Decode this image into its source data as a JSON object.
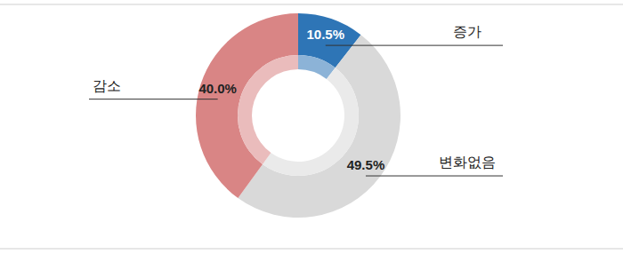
{
  "chart_data": {
    "type": "donut",
    "categories": [
      "증가",
      "변화없음",
      "감소"
    ],
    "values": [
      10.5,
      49.5,
      40.0
    ],
    "value_labels": [
      "10.5%",
      "49.5%",
      "40.0%"
    ],
    "colors": [
      "#2e75b6",
      "#d9d9d9",
      "#d98585"
    ],
    "data_labels": true
  }
}
